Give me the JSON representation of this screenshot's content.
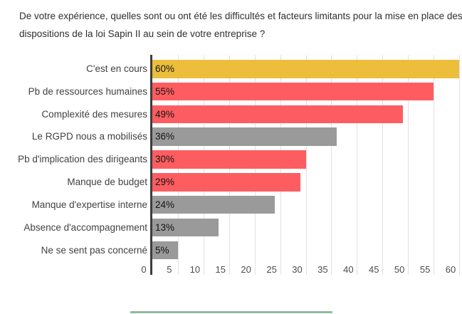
{
  "title": {
    "text": "De votre expérience, quelles sont ou ont été les difficultés et facteurs limitants pour la mise en place des dispositions de la loi Sapin II au sein de votre entreprise ?",
    "lines": [
      "De votre expérience, quelles sont ou ont été les difficultés et facteurs limitants pour la mise en place des",
      "dispositions de la loi Sapin II au sein de votre entreprise ?"
    ]
  },
  "chart_data": {
    "type": "bar",
    "orientation": "horizontal",
    "title": "De votre expérience, quelles sont ou ont été les difficultés et facteurs limitants pour la mise en place des dispositions de la loi Sapin II au sein de votre entreprise ?",
    "categories": [
      "C'est en cours",
      "Pb de ressources humaines",
      "Complexité des mesures",
      "Le RGPD nous a mobilisés",
      "Pb d'implication des dirigeants",
      "Manque de budget",
      "Manque d'expertise interne",
      "Absence d'accompagnement",
      "Ne se sent pas concerné"
    ],
    "values": [
      60,
      55,
      49,
      36,
      30,
      29,
      24,
      13,
      5
    ],
    "value_labels": [
      "60%",
      "55%",
      "49%",
      "36%",
      "30%",
      "29%",
      "24%",
      "13%",
      "5%"
    ],
    "bar_colors": [
      "#ECBE3B",
      "#FD5D60",
      "#FD5D60",
      "#9A9A9A",
      "#FD5D60",
      "#FD5D60",
      "#9A9A9A",
      "#9A9A9A",
      "#9A9A9A"
    ],
    "x_ticks": [
      0,
      5,
      10,
      15,
      20,
      25,
      30,
      35,
      40,
      45,
      50,
      55,
      60
    ],
    "xlim": [
      0,
      60
    ],
    "grid": true,
    "legend_position": "none",
    "value_label_position": "inside-left",
    "colors": {
      "gold": "#ECBE3B",
      "red": "#FD5D60",
      "gray": "#9A9A9A",
      "axis_line": "#3D3D3D",
      "gridline": "#E1E1E1",
      "category_label": "#424242",
      "value_label": "#141414",
      "tick_label": "#4C4C4C",
      "title_text": "#2F2F2F"
    }
  },
  "footer": {
    "divider_color": "#90BCA1"
  }
}
